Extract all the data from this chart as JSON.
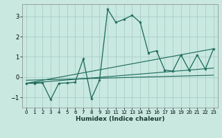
{
  "background_color": "#c8e8e0",
  "grid_color": "#a8cec8",
  "line_color": "#1a6858",
  "xlabel": "Humidex (Indice chaleur)",
  "xlim": [
    -0.5,
    23.5
  ],
  "ylim": [
    -1.5,
    3.6
  ],
  "xticks": [
    0,
    1,
    2,
    3,
    4,
    5,
    6,
    7,
    8,
    9,
    10,
    11,
    12,
    13,
    14,
    15,
    16,
    17,
    18,
    19,
    20,
    21,
    22,
    23
  ],
  "yticks": [
    -1,
    0,
    1,
    2,
    3
  ],
  "main_x": [
    0,
    1,
    2,
    3,
    4,
    5,
    6,
    7,
    8,
    9,
    10,
    11,
    12,
    13,
    14,
    15,
    16,
    17,
    18,
    19,
    20,
    21,
    22,
    23
  ],
  "main_y": [
    -0.3,
    -0.3,
    -0.28,
    -1.1,
    -0.3,
    -0.28,
    -0.25,
    0.9,
    -1.05,
    -0.15,
    3.35,
    2.7,
    2.85,
    3.05,
    2.7,
    1.2,
    1.3,
    0.35,
    0.3,
    1.1,
    0.35,
    1.1,
    0.4,
    1.4
  ],
  "trend1_x": [
    0,
    23
  ],
  "trend1_y": [
    -0.3,
    1.4
  ],
  "trend2_x": [
    0,
    23
  ],
  "trend2_y": [
    -0.3,
    0.45
  ],
  "trend3_x": [
    0,
    23
  ],
  "trend3_y": [
    -0.15,
    0.1
  ]
}
